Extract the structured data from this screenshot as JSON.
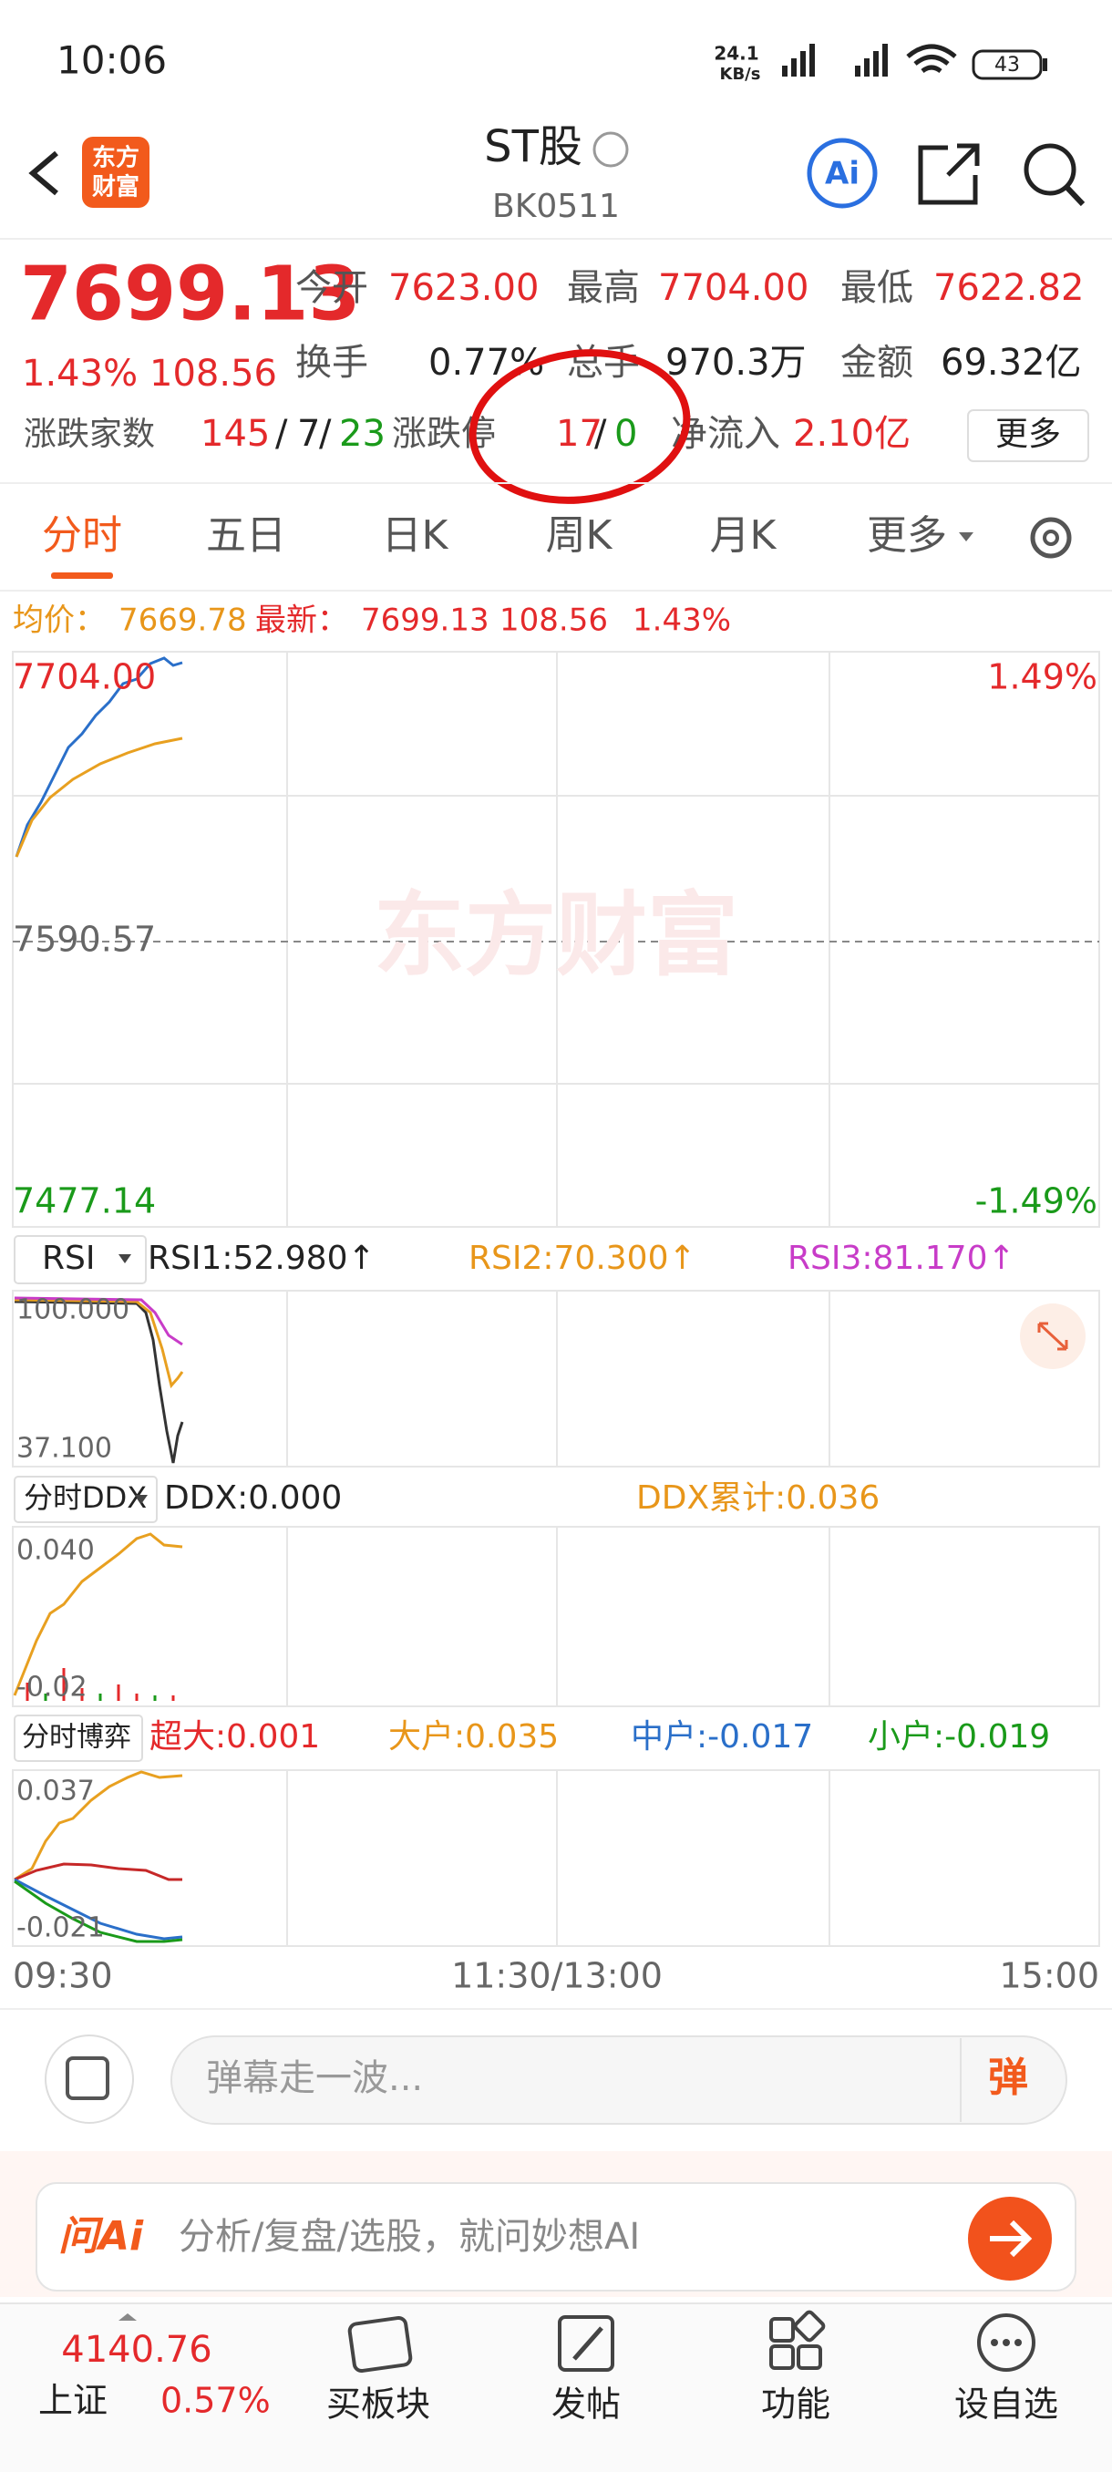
{
  "status": {
    "time": "10:06",
    "speed": "24.1",
    "speed_unit": "KB/s",
    "battery": "43"
  },
  "header": {
    "logo": [
      "东方",
      "财富"
    ],
    "title": "ST股",
    "code": "BK0511",
    "ai": "Ai"
  },
  "quote": {
    "price": "7699.13",
    "change_pct": "1.43%",
    "change": "108.56",
    "open_label": "今开",
    "open": "7623.00",
    "high_label": "最高",
    "high": "7704.00",
    "low_label": "最低",
    "low": "7622.82",
    "turnover_label": "换手",
    "turnover": "0.77%",
    "volume_label": "总手",
    "volume": "970.3万",
    "amount_label": "金额",
    "amount": "69.32亿",
    "breadth_label": "涨跌家数",
    "breadth_up": "145",
    "breadth_flat": "7",
    "breadth_down": "23",
    "separator": "/",
    "limit_label": "涨跌停",
    "limit_up": "17",
    "limit_down": "0",
    "inflow_label": "净流入",
    "inflow": "2.10亿",
    "more": "更多"
  },
  "tabs": [
    "分时",
    "五日",
    "日K",
    "周K",
    "月K",
    "更多"
  ],
  "info": {
    "avg_label": "均价：",
    "avg": "7669.78",
    "latest_label": "最新：",
    "latest": "7699.13",
    "change": "108.56",
    "pct": "1.43%"
  },
  "main_chart": {
    "watermark": "东方财富",
    "high": "7704.00",
    "mid": "7590.57",
    "low": "7477.14",
    "high_pct": "1.49%",
    "low_pct": "-1.49%"
  },
  "rsi": {
    "selector": "RSI",
    "rsi1": "RSI1:52.980↑",
    "rsi2": "RSI2:70.300↑",
    "rsi3": "RSI3:81.170↑",
    "top": "100.000",
    "bottom": "37.100"
  },
  "ddx": {
    "selector": "分时DDX",
    "ddx": "DDX:0.000",
    "cum": "DDX累计:0.036",
    "top": "0.040",
    "bottom": "-0.02"
  },
  "boyi": {
    "selector": "分时博弈",
    "super": "超大:0.001",
    "large": "大户:0.035",
    "mid": "中户:-0.017",
    "small": "小户:-0.019",
    "top": "0.037",
    "bottom": "-0.021"
  },
  "time_axis": [
    "09:30",
    "11:30/13:00",
    "15:00"
  ],
  "danmu": {
    "placeholder": "弹幕走一波...",
    "button": "弹"
  },
  "ai_bar": {
    "logo": "问Ai",
    "placeholder": "分析/复盘/选股，就问妙想AI"
  },
  "nav": {
    "index_value": "4140.76",
    "index_name": "上证",
    "index_pct": "0.57%",
    "items": [
      "买板块",
      "发帖",
      "功能",
      "设自选"
    ]
  }
}
